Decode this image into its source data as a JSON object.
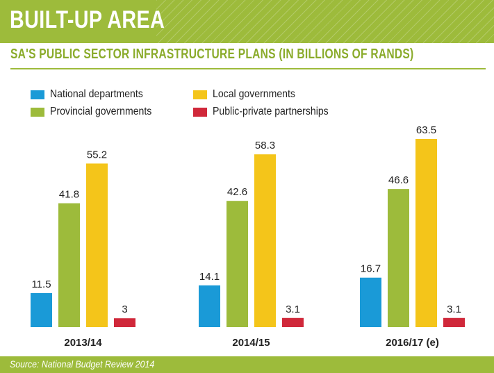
{
  "header": {
    "title": "BUILT-UP AREA"
  },
  "subtitle": "SA'S PUBLIC SECTOR INFRASTRUCTURE PLANS (IN BILLIONS OF RANDS)",
  "footer": {
    "source": "Source: National Budget Review 2014"
  },
  "colors": {
    "brand_green": "#9dbb3b",
    "national": "#1a9ad7",
    "provincial": "#9dbb3b",
    "local": "#f4c51a",
    "ppp": "#d0283a"
  },
  "chart_data": {
    "type": "bar",
    "title": "SA'S PUBLIC SECTOR INFRASTRUCTURE PLANS (IN BILLIONS OF RANDS)",
    "categories": [
      "2013/14",
      "2014/15",
      "2016/17 (e)"
    ],
    "series": [
      {
        "name": "National departments",
        "color": "#1a9ad7",
        "values": [
          11.5,
          14.1,
          16.7
        ]
      },
      {
        "name": "Provincial governments",
        "color": "#9dbb3b",
        "values": [
          41.8,
          42.6,
          46.6
        ]
      },
      {
        "name": "Local governments",
        "color": "#f4c51a",
        "values": [
          55.2,
          58.3,
          63.5
        ]
      },
      {
        "name": "Public-private partnerships",
        "color": "#d0283a",
        "values": [
          3,
          3.1,
          3.1
        ]
      }
    ],
    "value_labels": [
      [
        "11.5",
        "41.8",
        "55.2",
        "3"
      ],
      [
        "14.1",
        "42.6",
        "58.3",
        "3.1"
      ],
      [
        "16.7",
        "46.6",
        "63.5",
        "3.1"
      ]
    ],
    "xlabel": "",
    "ylabel": "",
    "ylim": [
      0,
      63.5
    ],
    "grid": false,
    "legend_position": "top-left",
    "data_labels": true
  }
}
